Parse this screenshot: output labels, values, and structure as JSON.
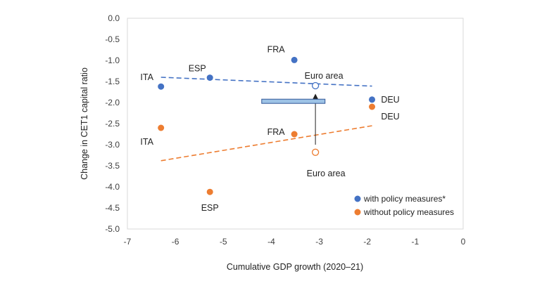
{
  "chart_data": {
    "type": "scatter",
    "xlabel": "Cumulative GDP growth (2020–21)",
    "ylabel": "Change in CET1 capital ratio",
    "xlim": [
      -7,
      0
    ],
    "ylim": [
      -5,
      0
    ],
    "x_ticks": [
      "-7",
      "-6",
      "-5",
      "-4",
      "-3",
      "-2",
      "-1",
      "0"
    ],
    "y_ticks": [
      "0.0",
      "-0.5",
      "-1.0",
      "-1.5",
      "-2.0",
      "-2.5",
      "-3.0",
      "-3.5",
      "-4.0",
      "-4.5",
      "-5.0"
    ],
    "grid": false,
    "legend_position": "bottom-right",
    "series": [
      {
        "name": "with policy measures*",
        "color": "#4472C4",
        "points": [
          {
            "label": "ITA",
            "x": -6.3,
            "y": -1.62
          },
          {
            "label": "ESP",
            "x": -5.28,
            "y": -1.41
          },
          {
            "label": "FRA",
            "x": -3.52,
            "y": -0.99
          },
          {
            "label": "DEU",
            "x": -1.9,
            "y": -1.93
          },
          {
            "label": "Euro area",
            "x": -3.08,
            "y": -1.6,
            "hollow": true
          }
        ],
        "trendline": {
          "x": [
            -6.3,
            -1.9
          ],
          "y": [
            -1.4,
            -1.61
          ]
        }
      },
      {
        "name": "without policy measures",
        "color": "#ED7D31",
        "points": [
          {
            "label": "ITA",
            "x": -6.3,
            "y": -2.6
          },
          {
            "label": "ESP",
            "x": -5.28,
            "y": -4.12
          },
          {
            "label": "FRA",
            "x": -3.52,
            "y": -2.75
          },
          {
            "label": "DEU",
            "x": -1.9,
            "y": -2.1
          },
          {
            "label": "Euro area",
            "x": -3.08,
            "y": -3.18,
            "hollow": true
          }
        ],
        "trendline": {
          "x": [
            -6.3,
            -1.9
          ],
          "y": [
            -3.38,
            -2.55
          ]
        }
      }
    ],
    "annotation": {
      "arrow": {
        "x": -3.08,
        "from_y": -3.0,
        "to_y": -1.79
      },
      "bar_marker": {
        "x_start": -4.2,
        "x_end": -2.88,
        "y": -1.97,
        "color": "#9DC3E6"
      }
    }
  }
}
